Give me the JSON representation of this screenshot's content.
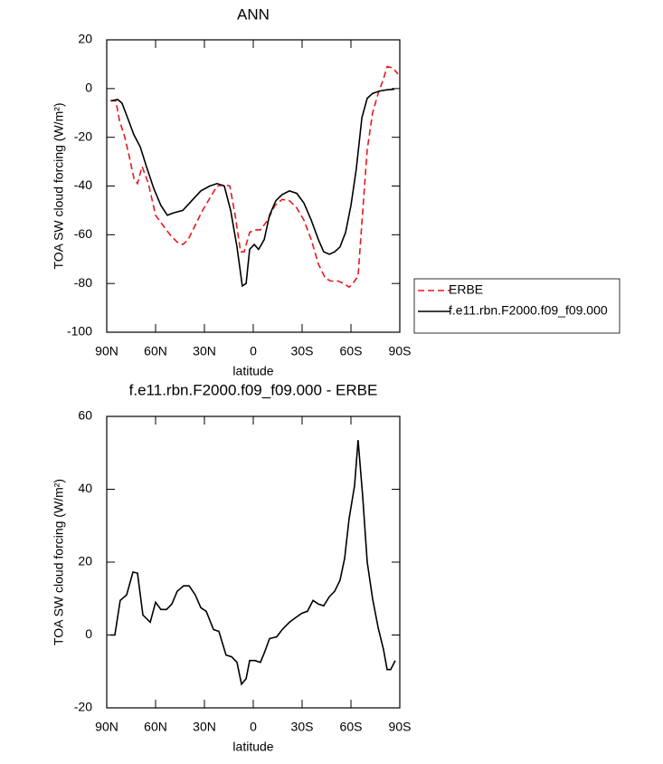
{
  "chart_data": [
    {
      "type": "line",
      "title": "ANN",
      "xlabel": "latitude",
      "ylabel": "TOA SW cloud forcing (W/m²)",
      "xlim": [
        90,
        -90
      ],
      "xticks": [
        {
          "value": 90,
          "label": "90N"
        },
        {
          "value": 60,
          "label": "60N"
        },
        {
          "value": 30,
          "label": "30N"
        },
        0,
        {
          "value": -30,
          "label": "30S"
        },
        {
          "value": -60,
          "label": "60S"
        },
        {
          "value": -90,
          "label": "90S"
        }
      ],
      "ylim": [
        -100,
        20
      ],
      "yticks": [
        -100,
        -80,
        -60,
        -40,
        -20,
        0,
        20
      ],
      "legend": "right",
      "series": [
        {
          "name": "ERBE",
          "color": "#e8191b",
          "linestyle": "dashed",
          "x": [
            87.8,
            84.4,
            82.2,
            78.9,
            76.1,
            73.3,
            71.1,
            68.3,
            64.4,
            60,
            55.6,
            51.1,
            46.7,
            43.3,
            40,
            35.6,
            31.1,
            26.7,
            22.2,
            17.8,
            14.4,
            11.1,
            7.8,
            5.6,
            2.2,
            -1.1,
            -4.4,
            -8.9,
            -13.3,
            -17.8,
            -22.2,
            -26.7,
            -31.1,
            -35.6,
            -40,
            -44.4,
            -47.8,
            -52.2,
            -55.6,
            -58.9,
            -61.1,
            -64.4,
            -66.7,
            -70,
            -73.3,
            -76.7,
            -80,
            -82.2,
            -85.6,
            -88.9
          ],
          "values": [
            -5,
            -5,
            -13,
            -20,
            -28,
            -37,
            -39,
            -32,
            -39,
            -52,
            -56,
            -60,
            -63,
            -64,
            -62,
            -56,
            -50,
            -45,
            -40,
            -39.5,
            -40,
            -52,
            -67,
            -67,
            -59,
            -58,
            -58,
            -54,
            -48,
            -45.5,
            -46,
            -49,
            -54,
            -62,
            -72,
            -78,
            -79,
            -79,
            -80,
            -81.5,
            -80,
            -77,
            -55,
            -25,
            -10,
            -2,
            4,
            9,
            8.5,
            6
          ]
        },
        {
          "name": "f.e11.rbn.F2000.f09_f09.000",
          "color": "#000000",
          "linestyle": "solid",
          "x": [
            87.2,
            83.3,
            80.6,
            77.8,
            73.3,
            69.4,
            65.6,
            61.1,
            56.7,
            52.8,
            48.9,
            43.3,
            37.8,
            32.2,
            26.7,
            22.2,
            17.8,
            13.9,
            10,
            6.7,
            4.4,
            2.2,
            -0.6,
            -3.3,
            -6.7,
            -10,
            -13.9,
            -17.8,
            -22.2,
            -26.7,
            -31.1,
            -35.6,
            -40,
            -43.3,
            -46.7,
            -50,
            -53.3,
            -56.7,
            -60,
            -63.3,
            -66.7,
            -70,
            -73.3,
            -77.8,
            -82.2,
            -86.7
          ],
          "values": [
            -5,
            -4.5,
            -6,
            -11,
            -19,
            -24,
            -32,
            -41,
            -48,
            -52,
            -51,
            -50,
            -46,
            -42,
            -40,
            -39,
            -40,
            -50,
            -65,
            -81,
            -80,
            -66,
            -64,
            -66,
            -62,
            -52,
            -46,
            -43.5,
            -42,
            -43,
            -47,
            -54,
            -62,
            -67,
            -68,
            -67,
            -65,
            -59,
            -48,
            -33,
            -12,
            -4,
            -2,
            -1,
            -0.5,
            -0.3
          ]
        }
      ]
    },
    {
      "type": "line",
      "title": "f.e11.rbn.F2000.f09_f09.000 - ERBE",
      "xlabel": "latitude",
      "ylabel": "TOA SW cloud forcing (W/m²)",
      "xlim": [
        90,
        -90
      ],
      "xticks": [
        {
          "value": 90,
          "label": "90N"
        },
        {
          "value": 60,
          "label": "60N"
        },
        {
          "value": 30,
          "label": "30N"
        },
        0,
        {
          "value": -30,
          "label": "30S"
        },
        {
          "value": -60,
          "label": "60S"
        },
        {
          "value": -90,
          "label": "90S"
        }
      ],
      "ylim": [
        -20,
        60
      ],
      "yticks": [
        -20,
        0,
        20,
        40,
        60
      ],
      "color": "#000000",
      "x": [
        87.8,
        85,
        81.7,
        77.8,
        73.9,
        71.1,
        67.8,
        63.3,
        60,
        56.7,
        53.3,
        50,
        46.7,
        42.8,
        39.4,
        35.6,
        32.2,
        28.9,
        24.4,
        21.1,
        16.7,
        13.3,
        10,
        7.2,
        4.4,
        2.2,
        -1.1,
        -4.4,
        -6.7,
        -10,
        -14.4,
        -17.8,
        -22.2,
        -26.7,
        -30,
        -33.3,
        -36.7,
        -40,
        -43.3,
        -46.7,
        -50,
        -53.3,
        -56.1,
        -58.9,
        -62.2,
        -64.4,
        -67.2,
        -70,
        -73.3,
        -76.7,
        -80,
        -82.2,
        -84.4,
        -87.2
      ],
      "values": [
        0,
        0,
        9.5,
        11,
        17.3,
        17,
        5.5,
        3.5,
        9,
        7,
        7,
        8.5,
        12,
        13.5,
        13.5,
        11,
        7.5,
        6.5,
        1.5,
        1,
        -5.5,
        -6,
        -7.5,
        -13.5,
        -12,
        -7,
        -7,
        -7.5,
        -5,
        -1,
        -0.5,
        1.5,
        3.5,
        5,
        6,
        6.5,
        9.5,
        8.5,
        8,
        10.5,
        12,
        15,
        21,
        32,
        41,
        53.5,
        38,
        20,
        10,
        2,
        -4,
        -9.5,
        -9.5,
        -7
      ]
    }
  ]
}
